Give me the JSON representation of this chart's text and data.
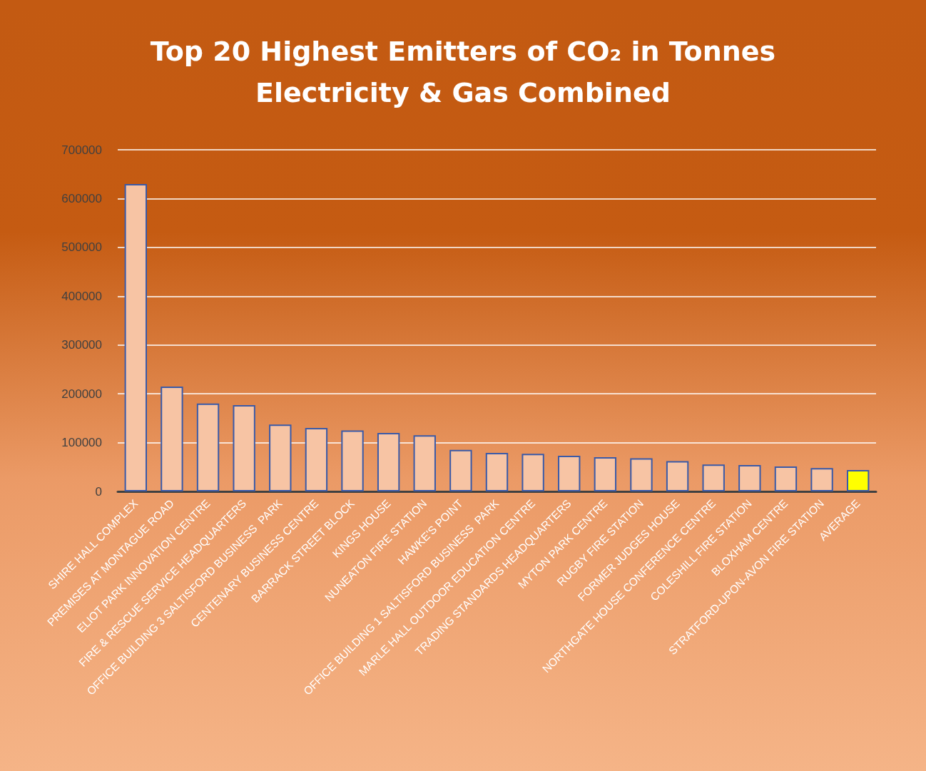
{
  "chart_data": {
    "type": "bar",
    "title": "Top 20 Highest Emitters of CO₂ in Tonnes\nElectricity & Gas Combined",
    "categories": [
      "SHIRE HALL COMPLEX",
      "PREMISES AT MONTAGUE ROAD",
      "ELIOT PARK INNOVATION CENTRE",
      "FIRE & RESCUE SERVICE HEADQUARTERS",
      "OFFICE BUILDING 3 SALTISFORD BUSINESS  PARK",
      "CENTENARY BUSINESS CENTRE",
      "BARRACK STREET BLOCK",
      "KINGS HOUSE",
      "NUNEATON FIRE STATION",
      "HAWKE'S POINT",
      "OFFICE BUILDING 1 SALTISFORD BUSINESS  PARK",
      "MARLE HALL OUTDOOR EDUCATION CENTRE",
      "TRADING STANDARDS HEADQUARTERS",
      "MYTON PARK CENTRE",
      "RUGBY FIRE STATION",
      "FORMER JUDGES HOUSE",
      "NORTHGATE HOUSE CONFERENCE CENTRE",
      "COLESHILL FIRE STATION",
      "BLOXHAM CENTRE",
      "STRATFORD-UPON-AVON FIRE STATION",
      "AVERAGE"
    ],
    "values": [
      630000,
      215000,
      180000,
      177000,
      137000,
      130000,
      125000,
      120000,
      115000,
      85000,
      79000,
      77000,
      73000,
      70000,
      68000,
      62000,
      55000,
      54000,
      51000,
      48000,
      44000
    ],
    "colors": [
      "#f7c4a4",
      "#f7c4a4",
      "#f7c4a4",
      "#f7c4a4",
      "#f7c4a4",
      "#f7c4a4",
      "#f7c4a4",
      "#f7c4a4",
      "#f7c4a4",
      "#f7c4a4",
      "#f7c4a4",
      "#f7c4a4",
      "#f7c4a4",
      "#f7c4a4",
      "#f7c4a4",
      "#f7c4a4",
      "#f7c4a4",
      "#f7c4a4",
      "#f7c4a4",
      "#f7c4a4",
      "#ffff00"
    ],
    "ylim": [
      0,
      700000
    ],
    "yticks": [
      0,
      100000,
      200000,
      300000,
      400000,
      500000,
      600000,
      700000
    ],
    "grid": "y"
  }
}
